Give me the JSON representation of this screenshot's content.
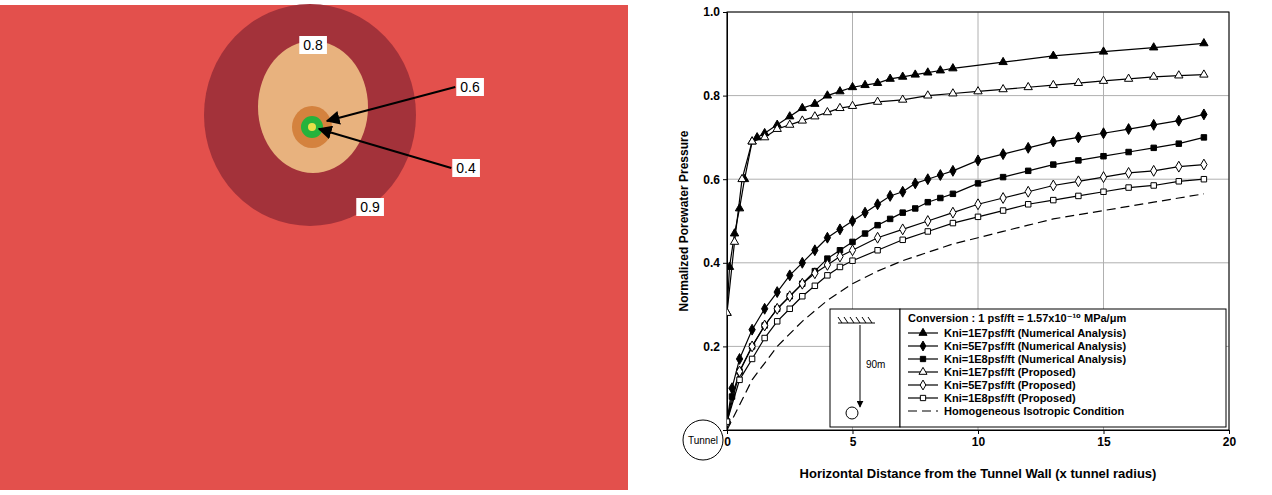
{
  "chart_data": [
    {
      "type": "contour",
      "levels": [
        0.9,
        0.8,
        0.6,
        0.4
      ],
      "colors": [
        "#a3323a",
        "#e8b27e",
        "#d4823e",
        "#25b33c"
      ],
      "color": "#e3504c"
    },
    {
      "type": "line",
      "x_label": "Horizontal Distance from the Tunnel Wall (x tunnel radius)",
      "y_label": "Normalized Porewater Pressure",
      "xlim": [
        0,
        20
      ],
      "ylim": [
        0,
        1
      ],
      "xticks": [
        0,
        5,
        10,
        15,
        20
      ],
      "yticks": [
        0.2,
        0.4,
        0.6,
        0.8,
        {
          "value": 1,
          "label": "1.0"
        }
      ],
      "grid": true,
      "legend": "lower right",
      "annotations": [
        "Conversion : 1 psf/ft = 1.57x10⁻¹⁰ MPa/μm",
        "90m",
        "Tunnel"
      ],
      "series": [
        {
          "name": "Kni=1E7psf/ft (Numerical Analysis)",
          "color": "#000000",
          "marker": "triangle",
          "line_style": "solid",
          "x": [
            0,
            0.1,
            0.3,
            0.5,
            0.7,
            1,
            1.2,
            1.5,
            2,
            2.5,
            3,
            3.5,
            4,
            4.5,
            5,
            5.5,
            6,
            6.5,
            7,
            7.5,
            8,
            8.5,
            9,
            11,
            13,
            15,
            17,
            19
          ],
          "values": [
            0.28,
            0.39,
            0.47,
            0.53,
            0.6,
            0.69,
            0.7,
            0.71,
            0.73,
            0.75,
            0.77,
            0.78,
            0.8,
            0.81,
            0.82,
            0.825,
            0.83,
            0.84,
            0.845,
            0.85,
            0.855,
            0.86,
            0.865,
            0.88,
            0.895,
            0.905,
            0.915,
            0.925
          ]
        },
        {
          "name": "Kni=5E7psf/ft (Numerical Analysis)",
          "color": "#000000",
          "marker": "diamond",
          "line_style": "solid",
          "x": [
            0,
            0.2,
            0.5,
            1,
            1.5,
            2,
            2.5,
            3,
            3.5,
            4,
            4.5,
            5,
            5.5,
            6,
            6.5,
            7,
            7.5,
            8,
            8.5,
            9,
            10,
            11,
            12,
            13,
            14,
            15,
            16,
            17,
            18,
            19
          ],
          "values": [
            0.02,
            0.1,
            0.17,
            0.24,
            0.29,
            0.33,
            0.37,
            0.4,
            0.43,
            0.46,
            0.48,
            0.5,
            0.52,
            0.54,
            0.56,
            0.57,
            0.59,
            0.6,
            0.61,
            0.62,
            0.645,
            0.66,
            0.675,
            0.69,
            0.7,
            0.71,
            0.72,
            0.73,
            0.74,
            0.755
          ]
        },
        {
          "name": "Kni=1E8psf/ft (Numerical Analysis)",
          "color": "#000000",
          "marker": "square",
          "line_style": "solid",
          "x": [
            0,
            0.2,
            0.5,
            1,
            1.5,
            2,
            2.5,
            3,
            3.5,
            4,
            4.5,
            5,
            5.5,
            6,
            6.5,
            7,
            7.5,
            8,
            8.5,
            9,
            10,
            11,
            12,
            13,
            14,
            15,
            16,
            17,
            18,
            19
          ],
          "values": [
            0.02,
            0.08,
            0.14,
            0.2,
            0.25,
            0.29,
            0.32,
            0.35,
            0.38,
            0.41,
            0.43,
            0.45,
            0.47,
            0.49,
            0.505,
            0.52,
            0.53,
            0.545,
            0.555,
            0.565,
            0.59,
            0.605,
            0.62,
            0.635,
            0.645,
            0.655,
            0.665,
            0.675,
            0.685,
            0.7
          ]
        },
        {
          "name": "Kni=1E7psf/ft (Proposed)",
          "color": "#000000",
          "marker": "triangle-open",
          "line_style": "solid",
          "x": [
            0,
            0.3,
            0.6,
            1,
            1.5,
            2,
            2.5,
            3,
            3.5,
            4,
            4.5,
            5,
            6,
            7,
            8,
            9,
            10,
            11,
            12,
            13,
            14,
            15,
            16,
            17,
            18,
            19
          ],
          "values": [
            0.28,
            0.45,
            0.6,
            0.69,
            0.7,
            0.72,
            0.73,
            0.74,
            0.75,
            0.76,
            0.77,
            0.775,
            0.785,
            0.79,
            0.8,
            0.805,
            0.81,
            0.815,
            0.82,
            0.825,
            0.83,
            0.835,
            0.84,
            0.845,
            0.848,
            0.85
          ]
        },
        {
          "name": "Kni=5E7psf/ft (Proposed)",
          "color": "#000000",
          "marker": "diamond-open",
          "line_style": "solid",
          "x": [
            0,
            0.5,
            1,
            1.5,
            2,
            2.5,
            3,
            3.5,
            4,
            4.5,
            5,
            6,
            7,
            8,
            9,
            10,
            11,
            12,
            13,
            14,
            15,
            16,
            17,
            18,
            19
          ],
          "values": [
            0.02,
            0.14,
            0.2,
            0.25,
            0.29,
            0.32,
            0.35,
            0.375,
            0.395,
            0.415,
            0.43,
            0.46,
            0.48,
            0.5,
            0.52,
            0.54,
            0.555,
            0.57,
            0.585,
            0.595,
            0.605,
            0.615,
            0.62,
            0.63,
            0.635
          ]
        },
        {
          "name": "Kni=1E8psf/ft (Proposed)",
          "color": "#000000",
          "marker": "square-open",
          "line_style": "solid",
          "x": [
            0,
            0.5,
            1,
            1.5,
            2,
            2.5,
            3,
            3.5,
            4,
            4.5,
            5,
            6,
            7,
            8,
            9,
            10,
            11,
            12,
            13,
            14,
            15,
            16,
            17,
            18,
            19
          ],
          "values": [
            0.02,
            0.12,
            0.17,
            0.22,
            0.26,
            0.29,
            0.32,
            0.345,
            0.37,
            0.39,
            0.405,
            0.43,
            0.455,
            0.475,
            0.495,
            0.51,
            0.525,
            0.54,
            0.55,
            0.56,
            0.57,
            0.58,
            0.585,
            0.595,
            0.6
          ]
        },
        {
          "name": "Homogeneous Isotropic Condition",
          "color": "#000000",
          "marker": "none",
          "line_style": "dashed",
          "x": [
            0,
            1,
            2,
            3,
            4,
            5,
            6,
            7,
            8,
            9,
            10,
            11,
            12,
            13,
            14,
            15,
            16,
            17,
            18,
            19
          ],
          "values": [
            0,
            0.12,
            0.2,
            0.26,
            0.31,
            0.35,
            0.38,
            0.405,
            0.425,
            0.445,
            0.46,
            0.475,
            0.49,
            0.505,
            0.515,
            0.525,
            0.535,
            0.545,
            0.555,
            0.565
          ]
        }
      ]
    }
  ]
}
